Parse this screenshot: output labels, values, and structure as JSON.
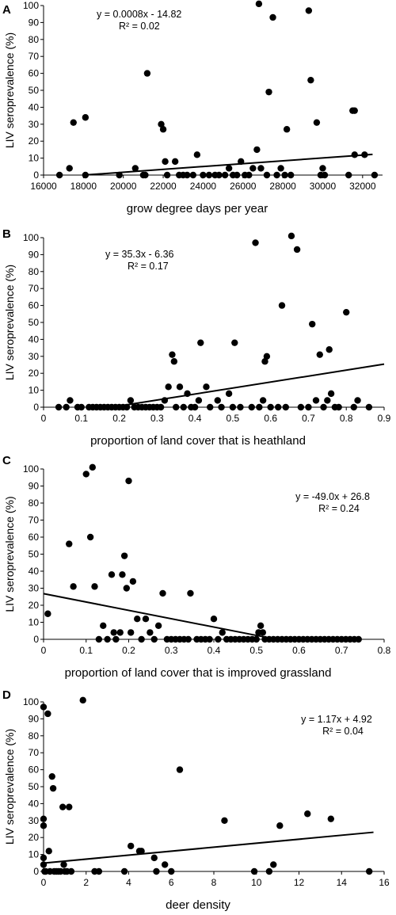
{
  "chart_data": [
    {
      "type": "scatter",
      "panel": "A",
      "ylabel": "LIV seroprevalence (%)",
      "xlabel": "grow degree days per year",
      "equation": "y = 0.0008x - 14.82",
      "r2": "R² = 0.02",
      "xlim": [
        16000,
        33000
      ],
      "ylim": [
        0,
        100
      ],
      "xticks": [
        16000,
        18000,
        20000,
        22000,
        24000,
        26000,
        28000,
        30000,
        32000
      ],
      "xtick_labels": [
        "16000",
        "18000",
        "20000",
        "22000",
        "24000",
        "26000",
        "28000",
        "30000",
        "32000"
      ],
      "yticks": [
        0,
        10,
        20,
        30,
        40,
        50,
        60,
        70,
        80,
        90,
        100
      ],
      "ytick_labels": [
        "0",
        "10",
        "20",
        "30",
        "40",
        "50",
        "60",
        "70",
        "80",
        "90",
        "100"
      ],
      "trendline": {
        "x": [
          18000,
          32500
        ],
        "y": [
          0,
          12.2
        ]
      },
      "points": [
        [
          16800,
          0
        ],
        [
          17300,
          4
        ],
        [
          17500,
          31
        ],
        [
          18100,
          34
        ],
        [
          18100,
          0
        ],
        [
          19800,
          0
        ],
        [
          20600,
          4
        ],
        [
          21000,
          0
        ],
        [
          21200,
          60
        ],
        [
          21100,
          0
        ],
        [
          21900,
          30
        ],
        [
          22000,
          27
        ],
        [
          22100,
          8
        ],
        [
          22200,
          0
        ],
        [
          22600,
          8
        ],
        [
          22800,
          0
        ],
        [
          23000,
          0
        ],
        [
          23200,
          0
        ],
        [
          23500,
          0
        ],
        [
          23700,
          12
        ],
        [
          24000,
          0
        ],
        [
          24300,
          0
        ],
        [
          24600,
          0
        ],
        [
          24800,
          0
        ],
        [
          25100,
          0
        ],
        [
          25300,
          4
        ],
        [
          25500,
          0
        ],
        [
          25700,
          0
        ],
        [
          25900,
          8
        ],
        [
          26100,
          0
        ],
        [
          26300,
          0
        ],
        [
          26500,
          4
        ],
        [
          26700,
          15
        ],
        [
          26800,
          101
        ],
        [
          26900,
          4
        ],
        [
          27200,
          0
        ],
        [
          27300,
          49
        ],
        [
          27500,
          93
        ],
        [
          27700,
          0
        ],
        [
          27900,
          4
        ],
        [
          28100,
          0
        ],
        [
          28200,
          27
        ],
        [
          28400,
          0
        ],
        [
          29300,
          97
        ],
        [
          29400,
          56
        ],
        [
          29700,
          31
        ],
        [
          29900,
          0
        ],
        [
          30000,
          4
        ],
        [
          30100,
          0
        ],
        [
          31300,
          0
        ],
        [
          31500,
          38
        ],
        [
          31600,
          38
        ],
        [
          31600,
          12
        ],
        [
          32100,
          12
        ],
        [
          32600,
          0
        ]
      ]
    },
    {
      "type": "scatter",
      "panel": "B",
      "ylabel": "LIV seroprevalence (%)",
      "xlabel": "proportion of land cover that is heathland",
      "equation": "y = 35.3x - 6.36",
      "r2": "R² = 0.17",
      "xlim": [
        0,
        0.9
      ],
      "ylim": [
        0,
        100
      ],
      "xticks": [
        0,
        0.1,
        0.2,
        0.3,
        0.4,
        0.5,
        0.6,
        0.7,
        0.8,
        0.9
      ],
      "xtick_labels": [
        "0",
        "0.1",
        "0.2",
        "0.3",
        "0.4",
        "0.5",
        "0.6",
        "0.7",
        "0.8",
        "0.9"
      ],
      "yticks": [
        0,
        10,
        20,
        30,
        40,
        50,
        60,
        70,
        80,
        90,
        100
      ],
      "ytick_labels": [
        "0",
        "10",
        "20",
        "30",
        "40",
        "50",
        "60",
        "70",
        "80",
        "90",
        "100"
      ],
      "trendline": {
        "x": [
          0.18,
          0.9
        ],
        "y": [
          0,
          25.4
        ]
      },
      "points": [
        [
          0.04,
          0
        ],
        [
          0.06,
          0
        ],
        [
          0.07,
          4
        ],
        [
          0.09,
          0
        ],
        [
          0.1,
          0
        ],
        [
          0.12,
          0
        ],
        [
          0.13,
          0
        ],
        [
          0.14,
          0
        ],
        [
          0.15,
          0
        ],
        [
          0.16,
          0
        ],
        [
          0.17,
          0
        ],
        [
          0.18,
          0
        ],
        [
          0.19,
          0
        ],
        [
          0.2,
          0
        ],
        [
          0.21,
          0
        ],
        [
          0.22,
          0
        ],
        [
          0.23,
          4
        ],
        [
          0.24,
          0
        ],
        [
          0.25,
          0
        ],
        [
          0.26,
          0
        ],
        [
          0.27,
          0
        ],
        [
          0.28,
          0
        ],
        [
          0.29,
          0
        ],
        [
          0.3,
          0
        ],
        [
          0.31,
          0
        ],
        [
          0.32,
          4
        ],
        [
          0.33,
          12
        ],
        [
          0.34,
          31
        ],
        [
          0.345,
          27
        ],
        [
          0.35,
          0
        ],
        [
          0.36,
          12
        ],
        [
          0.37,
          0
        ],
        [
          0.38,
          8
        ],
        [
          0.39,
          0
        ],
        [
          0.4,
          0
        ],
        [
          0.41,
          4
        ],
        [
          0.415,
          38
        ],
        [
          0.43,
          12
        ],
        [
          0.44,
          0
        ],
        [
          0.46,
          4
        ],
        [
          0.47,
          0
        ],
        [
          0.49,
          8
        ],
        [
          0.5,
          0
        ],
        [
          0.505,
          38
        ],
        [
          0.52,
          0
        ],
        [
          0.55,
          0
        ],
        [
          0.56,
          97
        ],
        [
          0.57,
          0
        ],
        [
          0.58,
          4
        ],
        [
          0.585,
          27
        ],
        [
          0.59,
          30
        ],
        [
          0.6,
          0
        ],
        [
          0.62,
          0
        ],
        [
          0.63,
          60
        ],
        [
          0.64,
          0
        ],
        [
          0.655,
          101
        ],
        [
          0.67,
          93
        ],
        [
          0.68,
          0
        ],
        [
          0.7,
          0
        ],
        [
          0.71,
          49
        ],
        [
          0.72,
          4
        ],
        [
          0.73,
          31
        ],
        [
          0.74,
          0
        ],
        [
          0.75,
          4
        ],
        [
          0.755,
          34
        ],
        [
          0.76,
          8
        ],
        [
          0.77,
          0
        ],
        [
          0.78,
          0
        ],
        [
          0.8,
          56
        ],
        [
          0.82,
          0
        ],
        [
          0.83,
          4
        ],
        [
          0.86,
          0
        ]
      ]
    },
    {
      "type": "scatter",
      "panel": "C",
      "ylabel": "LIV seroprevalence (%)",
      "xlabel": "proportion of land cover that is improved grassland",
      "equation": "y = -49.0x + 26.8",
      "r2": "R² = 0.24",
      "xlim": [
        0,
        0.8
      ],
      "ylim": [
        0,
        100
      ],
      "xticks": [
        0,
        0.1,
        0.2,
        0.3,
        0.4,
        0.5,
        0.6,
        0.7,
        0.8
      ],
      "xtick_labels": [
        "0",
        "0.1",
        "0.2",
        "0.3",
        "0.4",
        "0.5",
        "0.6",
        "0.7",
        "0.8"
      ],
      "yticks": [
        0,
        10,
        20,
        30,
        40,
        50,
        60,
        70,
        80,
        90,
        100
      ],
      "ytick_labels": [
        "0",
        "10",
        "20",
        "30",
        "40",
        "50",
        "60",
        "70",
        "80",
        "90",
        "100"
      ],
      "trendline": {
        "x": [
          0,
          0.52
        ],
        "y": [
          26.8,
          1.3
        ]
      },
      "points": [
        [
          0.01,
          15
        ],
        [
          0.06,
          56
        ],
        [
          0.07,
          31
        ],
        [
          0.1,
          97
        ],
        [
          0.11,
          60
        ],
        [
          0.115,
          101
        ],
        [
          0.12,
          31
        ],
        [
          0.13,
          0
        ],
        [
          0.14,
          8
        ],
        [
          0.15,
          0
        ],
        [
          0.16,
          38
        ],
        [
          0.165,
          4
        ],
        [
          0.17,
          0
        ],
        [
          0.18,
          4
        ],
        [
          0.185,
          38
        ],
        [
          0.19,
          49
        ],
        [
          0.195,
          30
        ],
        [
          0.2,
          93
        ],
        [
          0.205,
          4
        ],
        [
          0.21,
          34
        ],
        [
          0.22,
          12
        ],
        [
          0.23,
          0
        ],
        [
          0.24,
          12
        ],
        [
          0.25,
          4
        ],
        [
          0.26,
          0
        ],
        [
          0.27,
          8
        ],
        [
          0.28,
          27
        ],
        [
          0.29,
          0
        ],
        [
          0.3,
          0
        ],
        [
          0.31,
          0
        ],
        [
          0.32,
          0
        ],
        [
          0.33,
          0
        ],
        [
          0.34,
          0
        ],
        [
          0.345,
          27
        ],
        [
          0.36,
          0
        ],
        [
          0.37,
          0
        ],
        [
          0.38,
          0
        ],
        [
          0.39,
          0
        ],
        [
          0.4,
          12
        ],
        [
          0.41,
          0
        ],
        [
          0.42,
          4
        ],
        [
          0.43,
          0
        ],
        [
          0.44,
          0
        ],
        [
          0.45,
          0
        ],
        [
          0.46,
          0
        ],
        [
          0.47,
          0
        ],
        [
          0.48,
          0
        ],
        [
          0.49,
          0
        ],
        [
          0.5,
          0
        ],
        [
          0.505,
          4
        ],
        [
          0.51,
          8
        ],
        [
          0.515,
          4
        ],
        [
          0.52,
          0
        ],
        [
          0.53,
          0
        ],
        [
          0.54,
          0
        ],
        [
          0.55,
          0
        ],
        [
          0.56,
          0
        ],
        [
          0.57,
          0
        ],
        [
          0.58,
          0
        ],
        [
          0.59,
          0
        ],
        [
          0.6,
          0
        ],
        [
          0.61,
          0
        ],
        [
          0.62,
          0
        ],
        [
          0.63,
          0
        ],
        [
          0.64,
          0
        ],
        [
          0.65,
          0
        ],
        [
          0.66,
          0
        ],
        [
          0.67,
          0
        ],
        [
          0.68,
          0
        ],
        [
          0.69,
          0
        ],
        [
          0.7,
          0
        ],
        [
          0.71,
          0
        ],
        [
          0.72,
          0
        ],
        [
          0.73,
          0
        ],
        [
          0.74,
          0
        ]
      ]
    },
    {
      "type": "scatter",
      "panel": "D",
      "ylabel": "LIV seroprevalence (%)",
      "xlabel": "deer density",
      "equation": "y = 1.17x + 4.92",
      "r2": "R² = 0.04",
      "xlim": [
        0,
        16
      ],
      "ylim": [
        0,
        100
      ],
      "xticks": [
        0,
        2,
        4,
        6,
        8,
        10,
        12,
        14,
        16
      ],
      "xtick_labels": [
        "0",
        "2",
        "4",
        "6",
        "8",
        "10",
        "12",
        "14",
        "16"
      ],
      "yticks": [
        0,
        10,
        20,
        30,
        40,
        50,
        60,
        70,
        80,
        90,
        100
      ],
      "ytick_labels": [
        "0",
        "10",
        "20",
        "30",
        "40",
        "50",
        "60",
        "70",
        "80",
        "90",
        "100"
      ],
      "trendline": {
        "x": [
          0,
          15.5
        ],
        "y": [
          4.9,
          23.1
        ]
      },
      "points": [
        [
          0,
          97
        ],
        [
          0,
          31
        ],
        [
          0,
          27
        ],
        [
          0,
          8
        ],
        [
          0,
          4
        ],
        [
          0.05,
          0
        ],
        [
          0.1,
          0
        ],
        [
          0.2,
          93
        ],
        [
          0.25,
          12
        ],
        [
          0.3,
          0
        ],
        [
          0.4,
          56
        ],
        [
          0.45,
          49
        ],
        [
          0.5,
          0
        ],
        [
          0.6,
          0
        ],
        [
          0.7,
          0
        ],
        [
          0.8,
          0
        ],
        [
          0.9,
          38
        ],
        [
          0.95,
          4
        ],
        [
          1.0,
          0
        ],
        [
          1.1,
          0
        ],
        [
          1.2,
          38
        ],
        [
          1.3,
          0
        ],
        [
          1.85,
          101
        ],
        [
          2.4,
          0
        ],
        [
          2.6,
          0
        ],
        [
          3.8,
          0
        ],
        [
          4.1,
          15
        ],
        [
          4.5,
          12
        ],
        [
          4.6,
          12
        ],
        [
          5.2,
          8
        ],
        [
          5.3,
          0
        ],
        [
          5.7,
          4
        ],
        [
          6.0,
          0
        ],
        [
          6.4,
          60
        ],
        [
          8.5,
          30
        ],
        [
          9.9,
          0
        ],
        [
          10.6,
          0
        ],
        [
          10.8,
          4
        ],
        [
          11.1,
          27
        ],
        [
          12.4,
          34
        ],
        [
          13.5,
          31
        ],
        [
          15.3,
          0
        ]
      ]
    }
  ]
}
